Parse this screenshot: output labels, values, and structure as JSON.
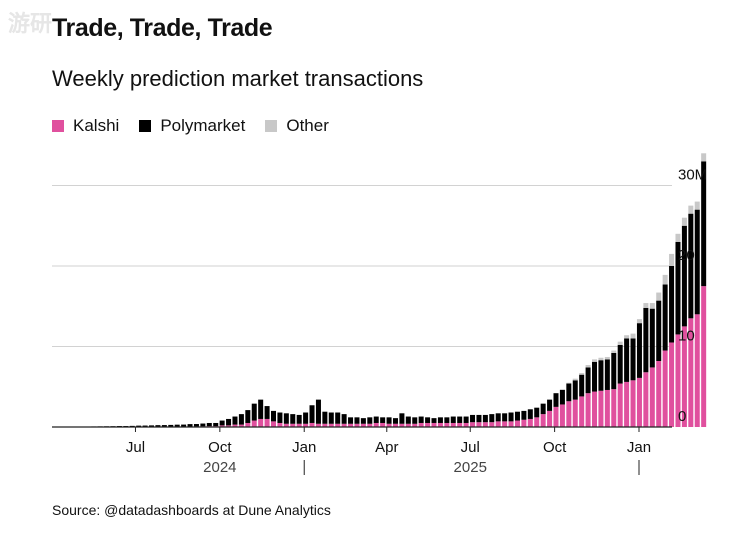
{
  "header": {
    "title": "Trade, Trade, Trade",
    "subtitle": "Weekly prediction market transactions"
  },
  "watermark": "游研",
  "legend": [
    {
      "label": "Kalshi",
      "color": "#e0509e"
    },
    {
      "label": "Polymarket",
      "color": "#000000"
    },
    {
      "label": "Other",
      "color": "#c8c8c8"
    }
  ],
  "source": "Source: @datadashboards at Dune Analytics",
  "chart_data": {
    "type": "bar",
    "stacked": true,
    "unit": "M",
    "x_axis": {
      "start_date": "2024-04-01",
      "month_ticks": [
        {
          "label": "Jul",
          "date": "2024-07-01"
        },
        {
          "label": "Oct",
          "date": "2024-10-01"
        },
        {
          "label": "Jan",
          "date": "2025-01-01"
        },
        {
          "label": "Apr",
          "date": "2025-04-01"
        },
        {
          "label": "Jul",
          "date": "2025-07-01"
        },
        {
          "label": "Oct",
          "date": "2025-10-01"
        },
        {
          "label": "Jan",
          "date": "2026-01-01"
        }
      ],
      "year_labels": [
        {
          "label": "2024",
          "date": "2024-10-01"
        },
        {
          "label": "2025",
          "date": "2025-07-01"
        }
      ]
    },
    "y_axis": {
      "ylim": [
        0,
        33
      ],
      "gridlines": [
        0,
        10,
        20,
        30
      ],
      "tick_labels": [
        {
          "value": 0,
          "label": "0"
        },
        {
          "value": 10,
          "label": "10"
        },
        {
          "value": 20,
          "label": "20"
        },
        {
          "value": 30,
          "label": "30M"
        }
      ],
      "position": "right"
    },
    "series": [
      {
        "name": "Kalshi",
        "color": "#e0509e",
        "values": [
          0.01,
          0.01,
          0.01,
          0.01,
          0.01,
          0.01,
          0.01,
          0.01,
          0.01,
          0.01,
          0.02,
          0.02,
          0.02,
          0.02,
          0.03,
          0.03,
          0.03,
          0.04,
          0.04,
          0.05,
          0.05,
          0.06,
          0.07,
          0.08,
          0.1,
          0.1,
          0.2,
          0.2,
          0.3,
          0.3,
          0.5,
          0.8,
          1.0,
          1.0,
          0.7,
          0.5,
          0.4,
          0.4,
          0.4,
          0.4,
          0.5,
          0.4,
          0.4,
          0.4,
          0.4,
          0.4,
          0.4,
          0.4,
          0.4,
          0.4,
          0.5,
          0.5,
          0.4,
          0.4,
          0.4,
          0.4,
          0.4,
          0.5,
          0.5,
          0.5,
          0.5,
          0.5,
          0.5,
          0.5,
          0.5,
          0.6,
          0.6,
          0.6,
          0.6,
          0.7,
          0.7,
          0.7,
          0.8,
          0.9,
          1.0,
          1.2,
          1.6,
          2.0,
          2.5,
          2.8,
          3.2,
          3.4,
          3.8,
          4.2,
          4.4,
          4.5,
          4.6,
          4.7,
          5.4,
          5.6,
          5.8,
          6.1,
          6.8,
          7.4,
          8.2,
          9.5,
          10.5,
          11.5,
          12.5,
          13.5,
          14.0,
          17.5
        ]
      },
      {
        "name": "Polymarket",
        "color": "#000000",
        "values": [
          0.03,
          0.03,
          0.04,
          0.04,
          0.05,
          0.05,
          0.06,
          0.07,
          0.08,
          0.09,
          0.1,
          0.1,
          0.12,
          0.15,
          0.15,
          0.17,
          0.2,
          0.2,
          0.22,
          0.24,
          0.25,
          0.3,
          0.3,
          0.35,
          0.4,
          0.4,
          0.6,
          0.8,
          1.0,
          1.3,
          1.6,
          2.1,
          2.4,
          1.6,
          1.3,
          1.3,
          1.3,
          1.2,
          1.1,
          1.4,
          2.2,
          3.0,
          1.5,
          1.4,
          1.4,
          1.2,
          0.8,
          0.8,
          0.7,
          0.8,
          0.8,
          0.7,
          0.8,
          0.7,
          1.3,
          0.9,
          0.8,
          0.8,
          0.7,
          0.6,
          0.7,
          0.7,
          0.8,
          0.8,
          0.8,
          0.9,
          0.9,
          0.9,
          1.0,
          1.0,
          1.0,
          1.1,
          1.1,
          1.1,
          1.2,
          1.2,
          1.3,
          1.4,
          1.7,
          1.8,
          2.2,
          2.4,
          2.7,
          3.2,
          3.7,
          3.8,
          3.8,
          4.5,
          4.8,
          5.4,
          5.2,
          6.8,
          8.0,
          7.3,
          7.5,
          8.2,
          9.5,
          11.5,
          12.5,
          13.0,
          13.0,
          15.5
        ]
      },
      {
        "name": "Other",
        "color": "#c8c8c8",
        "values": [
          0,
          0,
          0,
          0,
          0,
          0,
          0,
          0,
          0,
          0,
          0,
          0,
          0,
          0,
          0,
          0,
          0,
          0,
          0,
          0,
          0,
          0,
          0,
          0,
          0,
          0,
          0,
          0,
          0,
          0,
          0,
          0,
          0,
          0,
          0,
          0,
          0,
          0,
          0,
          0,
          0,
          0,
          0,
          0,
          0,
          0,
          0,
          0,
          0,
          0,
          0,
          0,
          0,
          0,
          0,
          0,
          0,
          0,
          0,
          0,
          0,
          0,
          0,
          0,
          0,
          0,
          0,
          0,
          0,
          0,
          0,
          0,
          0,
          0,
          0,
          0,
          0,
          0,
          0,
          0.1,
          0.1,
          0.2,
          0.2,
          0.3,
          0.3,
          0.3,
          0.3,
          0.3,
          0.4,
          0.4,
          0.6,
          0.5,
          0.6,
          0.7,
          1.0,
          1.2,
          1.5,
          1.0,
          1.0,
          1.0,
          1.0,
          1.0
        ]
      }
    ],
    "legend_position": "top-left",
    "grid": true
  }
}
